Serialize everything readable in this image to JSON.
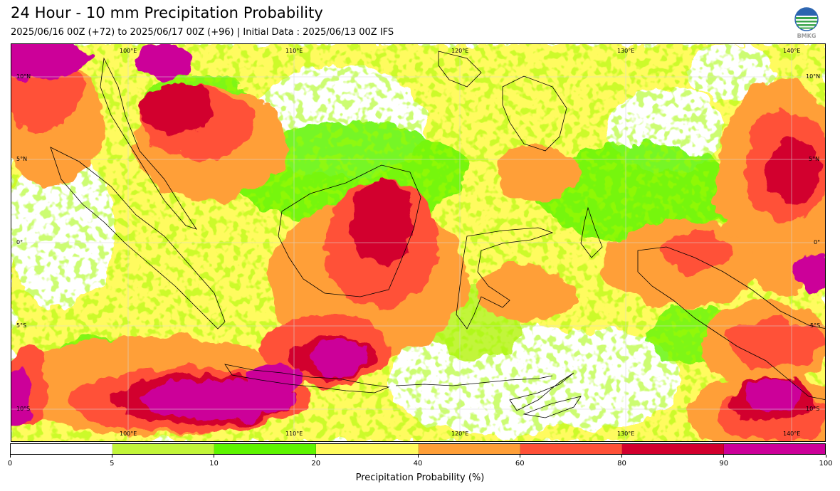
{
  "header": {
    "title": "24 Hour - 10 mm Precipitation Probability",
    "subtitle": "2025/06/16 00Z (+72) to 2025/06/17 00Z (+96) | Initial Data : 2025/06/13 00Z IFS",
    "logo_text": "BMKG"
  },
  "map": {
    "top_lon_labels": [
      "100°E",
      "110°E",
      "120°E",
      "130°E",
      "140°E"
    ],
    "bottom_lon_labels": [
      "100°E",
      "110°E",
      "120°E",
      "130°E",
      "140°E"
    ],
    "left_lat_labels": [
      "10°N",
      "5°N",
      "0°",
      "5°S",
      "10°S"
    ],
    "right_lat_labels": [
      "10°N",
      "5°N",
      "0°",
      "5°S",
      "10°S"
    ],
    "colors": {
      "land_outline": "#000000",
      "gridline": "#d8d8d8"
    }
  },
  "colorbar": {
    "title": "Precipitation Probability (%)",
    "levels": [
      0,
      5,
      10,
      20,
      40,
      60,
      80,
      90,
      100
    ],
    "tick_labels": [
      "0",
      "5",
      "10",
      "20",
      "40",
      "60",
      "80",
      "90",
      "100"
    ],
    "colors": [
      "#ffffff",
      "#c2f53a",
      "#5ef500",
      "#fffb5e",
      "#ff9f38",
      "#ff5138",
      "#d2002e",
      "#cc0099"
    ]
  }
}
